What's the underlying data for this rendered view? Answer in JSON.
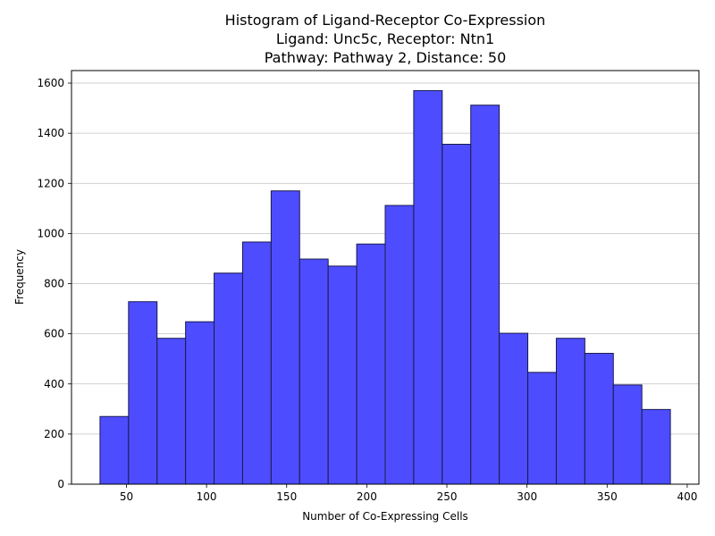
{
  "chart_data": {
    "type": "bar",
    "title_lines": [
      "Histogram of Ligand-Receptor Co-Expression",
      "Ligand: Unc5c, Receptor: Ntn1",
      "Pathway: Pathway 2, Distance: 50"
    ],
    "xlabel": "Number of Co-Expressing Cells",
    "ylabel": "Frequency",
    "bin_edges": [
      33.5,
      51.3,
      69.1,
      86.9,
      104.7,
      122.5,
      140.3,
      158.1,
      175.9,
      193.7,
      211.5,
      229.3,
      247.1,
      264.9,
      282.7,
      300.5,
      318.3,
      336.1,
      353.9,
      371.7,
      389.5
    ],
    "values": [
      270,
      728,
      582,
      648,
      842,
      966,
      1170,
      898,
      870,
      958,
      1112,
      1570,
      1356,
      1512,
      602,
      446,
      582,
      522,
      396,
      298
    ],
    "xlim": [
      15.7,
      407.3
    ],
    "ylim": [
      0,
      1650
    ],
    "xticks": [
      50,
      100,
      150,
      200,
      250,
      300,
      350,
      400
    ],
    "yticks": [
      0,
      200,
      400,
      600,
      800,
      1000,
      1200,
      1400,
      1600
    ],
    "grid": "y",
    "bar_color": "#4d4dff",
    "edge_color": "#1a1a4d",
    "legend": "none"
  }
}
